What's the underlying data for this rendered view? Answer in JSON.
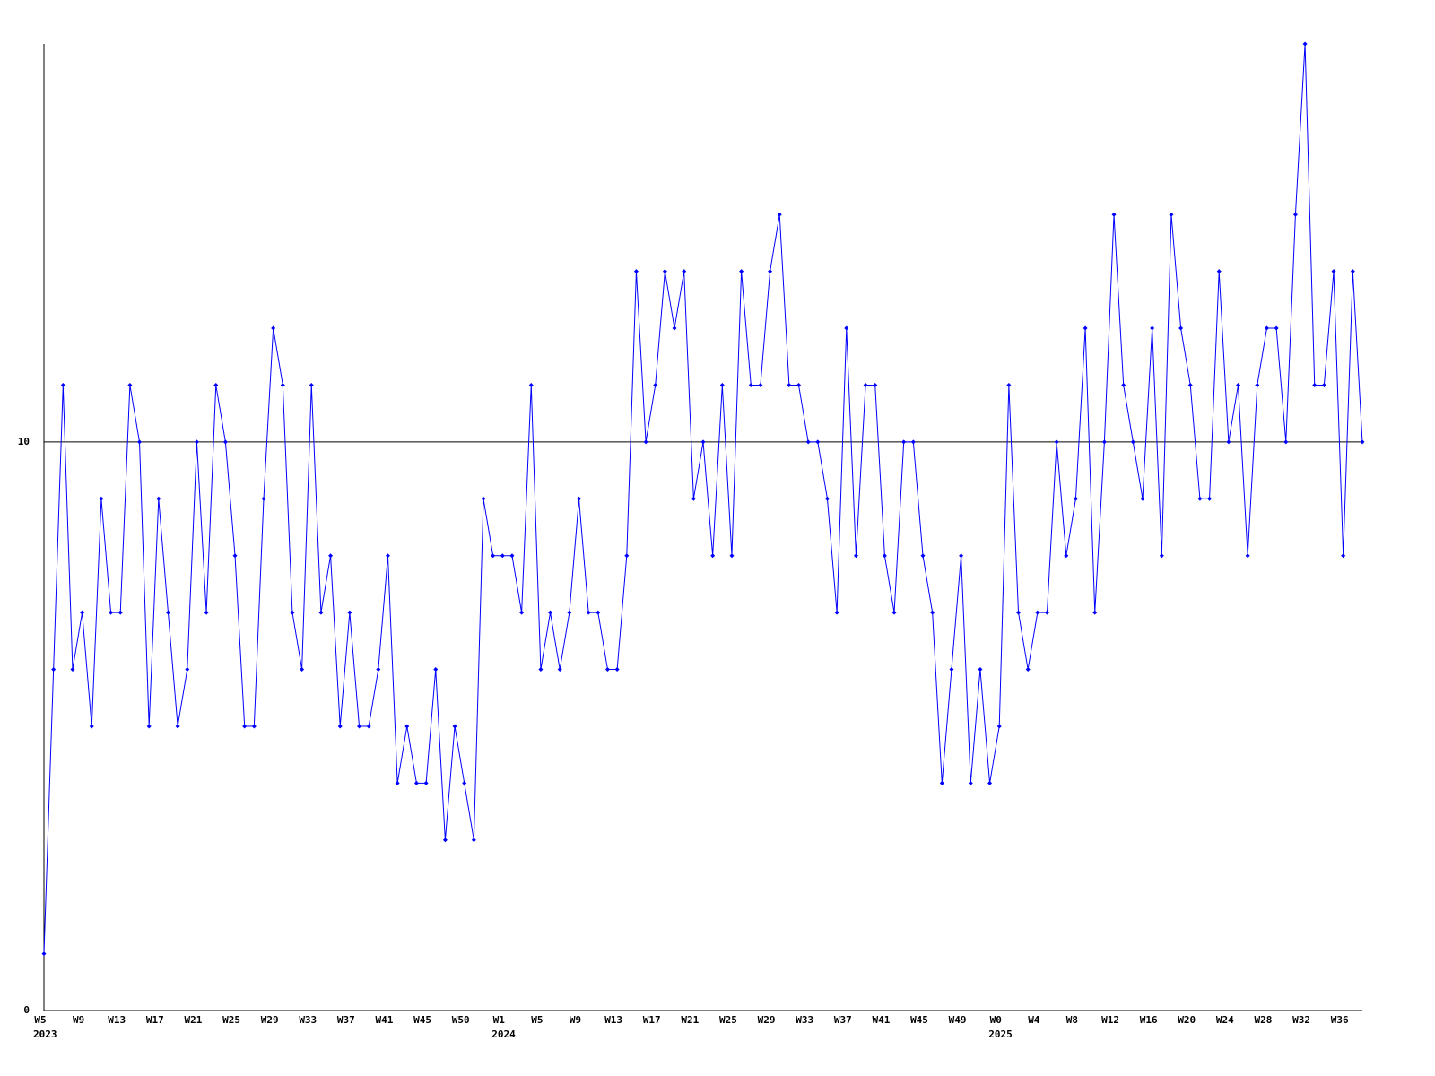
{
  "chart_data": {
    "type": "line",
    "categories": [
      "W5",
      null,
      null,
      null,
      "W9",
      null,
      null,
      null,
      "W13",
      null,
      null,
      null,
      "W17",
      null,
      null,
      null,
      "W21",
      null,
      null,
      null,
      "W25",
      null,
      null,
      null,
      "W29",
      null,
      null,
      null,
      "W33",
      null,
      null,
      null,
      "W37",
      null,
      null,
      null,
      "W41",
      null,
      null,
      null,
      "W45",
      null,
      null,
      null,
      "W50",
      null,
      null,
      null,
      "W1",
      null,
      null,
      null,
      "W5",
      null,
      null,
      null,
      "W9",
      null,
      null,
      null,
      "W13",
      null,
      null,
      null,
      "W17",
      null,
      null,
      null,
      "W21",
      null,
      null,
      null,
      "W25",
      null,
      null,
      null,
      "W29",
      null,
      null,
      null,
      "W33",
      null,
      null,
      null,
      "W37",
      null,
      null,
      null,
      "W41",
      null,
      null,
      null,
      "W45",
      null,
      null,
      null,
      "W49",
      null,
      null,
      null,
      "W0",
      null,
      null,
      null,
      "W4",
      null,
      null,
      null,
      "W8",
      null,
      null,
      null,
      "W12",
      null,
      null,
      null,
      "W16",
      null,
      null,
      null,
      "W20",
      null,
      null,
      null,
      "W24",
      null,
      null,
      null,
      "W28",
      null,
      null,
      null,
      "W32",
      null,
      null,
      null,
      "W36",
      null,
      null
    ],
    "years": [
      {
        "index": 0,
        "label": "2023"
      },
      {
        "index": 48,
        "label": "2024"
      },
      {
        "index": 100,
        "label": "2025"
      }
    ],
    "values": [
      1,
      6,
      11,
      6,
      7,
      5,
      9,
      7,
      7,
      11,
      10,
      5,
      9,
      7,
      5,
      6,
      10,
      7,
      11,
      10,
      8,
      5,
      5,
      9,
      12,
      11,
      7,
      6,
      11,
      7,
      8,
      5,
      7,
      5,
      5,
      6,
      8,
      4,
      5,
      4,
      4,
      6,
      3,
      5,
      4,
      3,
      9,
      8,
      8,
      8,
      7,
      11,
      6,
      7,
      6,
      7,
      9,
      7,
      7,
      6,
      6,
      8,
      13,
      10,
      11,
      13,
      12,
      13,
      9,
      10,
      8,
      11,
      8,
      13,
      11,
      11,
      13,
      14,
      11,
      11,
      10,
      10,
      9,
      7,
      12,
      8,
      11,
      11,
      8,
      7,
      10,
      10,
      8,
      7,
      4,
      6,
      8,
      4,
      6,
      4,
      5,
      11,
      7,
      6,
      7,
      7,
      10,
      8,
      9,
      12,
      7,
      10,
      14,
      11,
      10,
      9,
      12,
      8,
      14,
      12,
      11,
      9,
      9,
      13,
      10,
      11,
      8,
      11,
      12,
      12,
      10,
      14,
      17,
      11,
      11,
      13,
      8,
      13,
      10
    ],
    "color": "#0000ff",
    "ylim": [
      0,
      17
    ],
    "yticks": [
      0,
      10
    ],
    "grid": true
  }
}
